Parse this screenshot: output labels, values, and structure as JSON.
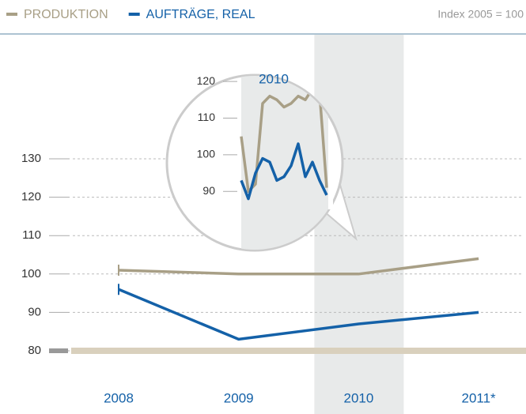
{
  "chart_data": [
    {
      "type": "line",
      "subtitle": "Index 2005 = 100",
      "categories": [
        "2008",
        "2009",
        "2010",
        "2011*"
      ],
      "series": [
        {
          "name": "PRODUKTION",
          "color": "#a89f86",
          "values": [
            101,
            100,
            100,
            104
          ]
        },
        {
          "name": "AUFTRÄGE, REAL",
          "color": "#1461a8",
          "values": [
            96,
            83,
            87,
            90
          ]
        }
      ],
      "ylim": [
        80,
        130
      ],
      "yticks": [
        80,
        90,
        100,
        110,
        120,
        130
      ],
      "grid": true,
      "highlight": 2
    },
    {
      "type": "line",
      "title": "2010",
      "categories": [
        null,
        null,
        null,
        null,
        null,
        null,
        null,
        null,
        null,
        null,
        null,
        null,
        null
      ],
      "series": [
        {
          "name": null,
          "color": "#a89f86",
          "values": [
            105,
            90,
            92,
            114,
            116,
            115,
            113,
            114,
            116,
            115,
            118,
            117,
            91
          ]
        },
        {
          "name": null,
          "color": "#1461a8",
          "values": [
            93,
            88,
            95,
            99,
            98,
            93,
            94,
            97,
            103,
            94,
            98,
            93,
            89
          ]
        }
      ],
      "ylim": [
        80,
        130
      ],
      "yticks": [
        90,
        100,
        110,
        120
      ]
    }
  ]
}
